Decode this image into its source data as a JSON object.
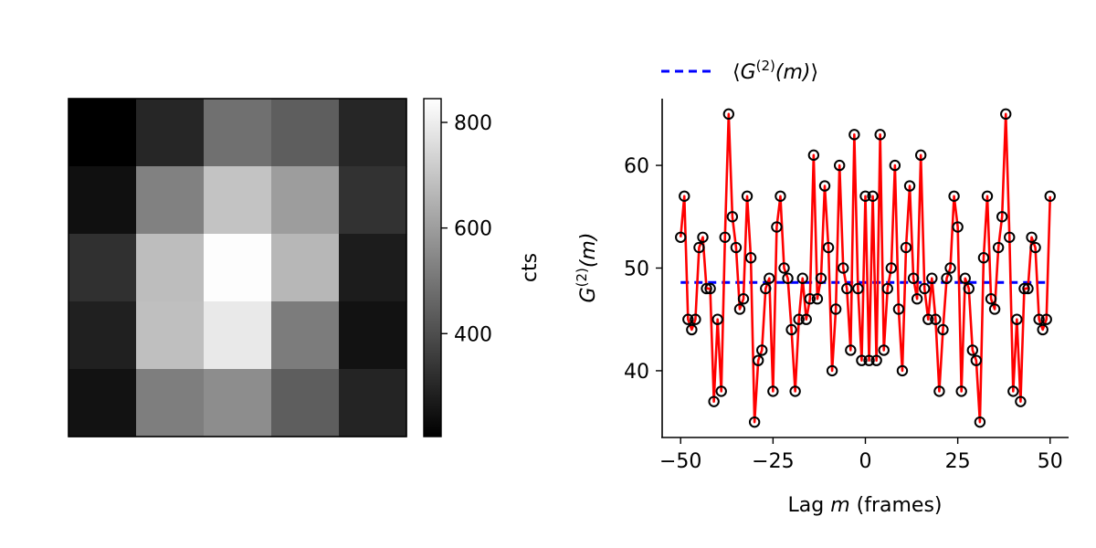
{
  "chart_data": [
    {
      "type": "heatmap",
      "title": "",
      "colormap": "gray",
      "rows": 5,
      "cols": 5,
      "values": [
        [
          205,
          300,
          485,
          440,
          300
        ],
        [
          245,
          530,
          695,
          600,
          330
        ],
        [
          325,
          680,
          840,
          665,
          275
        ],
        [
          285,
          685,
          790,
          515,
          250
        ],
        [
          250,
          520,
          560,
          440,
          295
        ]
      ],
      "colorbar": {
        "label": "cts",
        "range": [
          205,
          845
        ],
        "ticks": [
          400,
          600,
          800
        ],
        "tick_labels": [
          "400",
          "600",
          "800"
        ]
      }
    },
    {
      "type": "line",
      "title": "",
      "xlabel": {
        "prefix": "Lag ",
        "var": "m",
        "suffix": " (frames)"
      },
      "ylabel": {
        "base": "G",
        "sup": "(2)",
        "arg": "(m)"
      },
      "xlim": [
        -55,
        55
      ],
      "ylim": [
        33.5,
        66.5
      ],
      "xticks": [
        -50,
        -25,
        0,
        25,
        50
      ],
      "xtick_labels": [
        "−50",
        "−25",
        "0",
        "25",
        "50"
      ],
      "yticks": [
        40,
        50,
        60
      ],
      "ytick_labels": [
        "40",
        "50",
        "60"
      ],
      "x": [
        -50,
        -49,
        -48,
        -47,
        -46,
        -45,
        -44,
        -43,
        -42,
        -41,
        -40,
        -39,
        -38,
        -37,
        -36,
        -35,
        -34,
        -33,
        -32,
        -31,
        -30,
        -29,
        -28,
        -27,
        -26,
        -25,
        -24,
        -23,
        -22,
        -21,
        -20,
        -19,
        -18,
        -17,
        -16,
        -15,
        -14,
        -13,
        -12,
        -11,
        -10,
        -9,
        -8,
        -7,
        -6,
        -5,
        -4,
        -3,
        -2,
        -1,
        0,
        1,
        2,
        3,
        4,
        5,
        6,
        7,
        8,
        9,
        10,
        11,
        12,
        13,
        14,
        15,
        16,
        17,
        18,
        19,
        20,
        21,
        22,
        23,
        24,
        25,
        26,
        27,
        28,
        29,
        30,
        31,
        32,
        33,
        34,
        35,
        36,
        37,
        38,
        39,
        40,
        41,
        42,
        43,
        44,
        45,
        46,
        47,
        48,
        49,
        50
      ],
      "series": [
        {
          "name": "G2(m)",
          "color": "#ff0000",
          "marker": "open-circle",
          "marker_edge": "#000000",
          "values": [
            53,
            57,
            45,
            44,
            45,
            52,
            53,
            48,
            48,
            37,
            45,
            38,
            53,
            65,
            55,
            52,
            46,
            47,
            57,
            51,
            35,
            41,
            42,
            48,
            49,
            38,
            54,
            57,
            50,
            49,
            44,
            38,
            45,
            49,
            45,
            47,
            61,
            47,
            49,
            58,
            52,
            40,
            46,
            60,
            50,
            48,
            42,
            63,
            48,
            41,
            57,
            41,
            57,
            41,
            63,
            42,
            48,
            50,
            60,
            46,
            40,
            52,
            58,
            49,
            47,
            61,
            48,
            45,
            49,
            45,
            38,
            44,
            49,
            50,
            57,
            54,
            38,
            49,
            48,
            42,
            41,
            35,
            51,
            57,
            47,
            46,
            52,
            55,
            65,
            53,
            38,
            45,
            37,
            48,
            48,
            53,
            52,
            45,
            44,
            45,
            57
          ]
        },
        {
          "name": "mean",
          "color": "#0000ff",
          "style": "dashed",
          "constant": 48.6,
          "x_range": [
            -50,
            50
          ]
        }
      ],
      "legend": {
        "placement": "top-left outside",
        "entries": [
          {
            "series": "mean",
            "prefix": "⟨",
            "base": "G",
            "sup": "(2)",
            "arg": "(m)",
            "suffix": "⟩"
          }
        ]
      }
    }
  ]
}
